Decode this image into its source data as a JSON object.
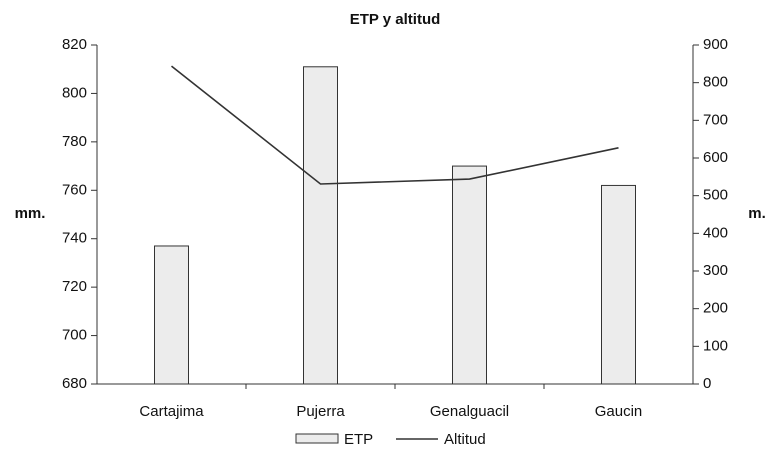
{
  "chart_data": {
    "type": "bar",
    "title": "ETP y altitud",
    "categories": [
      "Cartajima",
      "Pujerra",
      "Genalguacil",
      "Gaucin"
    ],
    "y_label": "mm.",
    "y2_label": "m.",
    "ylim": [
      680,
      820
    ],
    "yticks": [
      680,
      700,
      720,
      740,
      760,
      780,
      800,
      820
    ],
    "y2lim": [
      0,
      900
    ],
    "y2ticks": [
      0,
      100,
      200,
      300,
      400,
      500,
      600,
      700,
      800,
      900
    ],
    "series": [
      {
        "name": "ETP",
        "type": "bar",
        "color": "#ececec",
        "values": [
          737,
          811,
          770,
          762
        ]
      },
      {
        "name": "Altitud",
        "type": "line",
        "axis": "y2",
        "color": "#333333",
        "values": [
          844,
          531,
          544,
          627
        ]
      }
    ]
  }
}
